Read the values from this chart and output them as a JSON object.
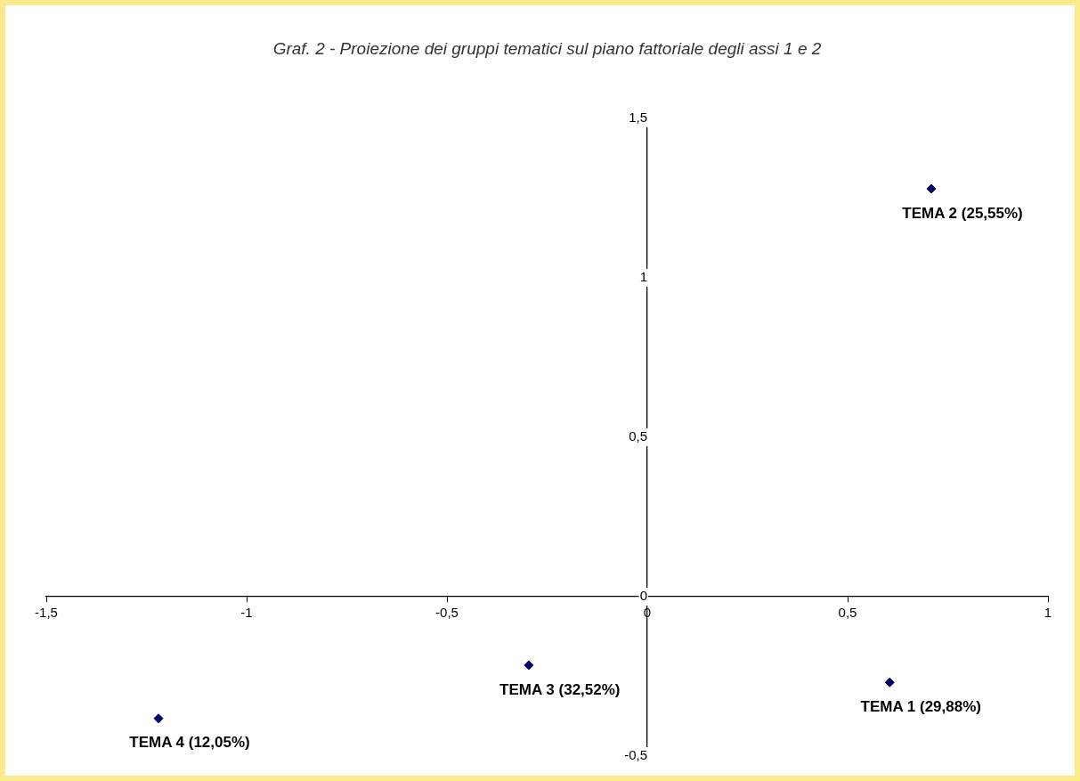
{
  "chart_data": {
    "type": "scatter",
    "title": "Graf. 2 - Proiezione dei gruppi tematici sul piano fattoriale degli assi 1 e 2",
    "series": [
      {
        "color": "#000066",
        "x": [
          0.605,
          0.709,
          -0.296,
          -1.22
        ],
        "values": [
          -0.269,
          1.279,
          -0.215,
          -0.382
        ]
      }
    ],
    "marker": "diamond",
    "grid": false,
    "legend": false,
    "xlim": [
      -1.5,
      1
    ],
    "xticks": [
      {
        "value": -1.5,
        "label": "-1,5"
      },
      -1,
      {
        "value": -0.5,
        "label": "-0,5"
      },
      0,
      {
        "value": 0.5,
        "label": "0,5"
      },
      1
    ],
    "ylim": [
      -0.5,
      1.5
    ],
    "yticks": [
      {
        "value": -0.5,
        "label": "-0,5"
      },
      0,
      {
        "value": 0.5,
        "label": "0,5"
      },
      1,
      {
        "value": 1.5,
        "label": "1,5"
      }
    ],
    "annotations": [
      {
        "text": "TEMA 1 (29,88%)",
        "x": 0.605,
        "y": -0.269
      },
      {
        "text": "TEMA 2 (25,55%)",
        "x": 0.709,
        "y": 1.279
      },
      {
        "text": "TEMA 3 (32,52%)",
        "x": -0.296,
        "y": -0.215
      },
      {
        "text": "TEMA 4 (12,05%)",
        "x": -1.22,
        "y": -0.382
      }
    ]
  }
}
